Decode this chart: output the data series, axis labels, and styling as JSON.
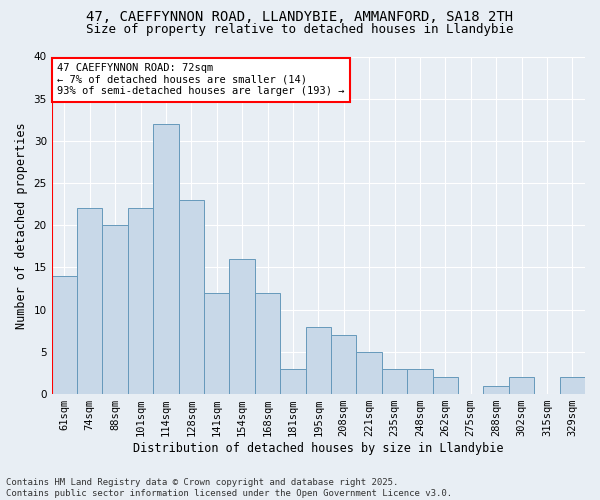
{
  "title_line1": "47, CAEFFYNNON ROAD, LLANDYBIE, AMMANFORD, SA18 2TH",
  "title_line2": "Size of property relative to detached houses in Llandybie",
  "xlabel": "Distribution of detached houses by size in Llandybie",
  "ylabel": "Number of detached properties",
  "categories": [
    "61sqm",
    "74sqm",
    "88sqm",
    "101sqm",
    "114sqm",
    "128sqm",
    "141sqm",
    "154sqm",
    "168sqm",
    "181sqm",
    "195sqm",
    "208sqm",
    "221sqm",
    "235sqm",
    "248sqm",
    "262sqm",
    "275sqm",
    "288sqm",
    "302sqm",
    "315sqm",
    "329sqm"
  ],
  "values": [
    14,
    22,
    20,
    22,
    32,
    23,
    12,
    16,
    12,
    3,
    8,
    7,
    5,
    3,
    3,
    2,
    0,
    1,
    2,
    0,
    2
  ],
  "bar_color": "#c8d8e8",
  "bar_edge_color": "#6699bb",
  "background_color": "#e8eef4",
  "annotation_text": "47 CAEFFYNNON ROAD: 72sqm\n← 7% of detached houses are smaller (14)\n93% of semi-detached houses are larger (193) →",
  "annotation_box_color": "white",
  "annotation_border_color": "red",
  "vline_color": "red",
  "ylim": [
    0,
    40
  ],
  "yticks": [
    0,
    5,
    10,
    15,
    20,
    25,
    30,
    35,
    40
  ],
  "footer_text": "Contains HM Land Registry data © Crown copyright and database right 2025.\nContains public sector information licensed under the Open Government Licence v3.0.",
  "title_fontsize": 10,
  "subtitle_fontsize": 9,
  "axis_label_fontsize": 8.5,
  "tick_fontsize": 7.5,
  "annotation_fontsize": 7.5,
  "footer_fontsize": 6.5
}
